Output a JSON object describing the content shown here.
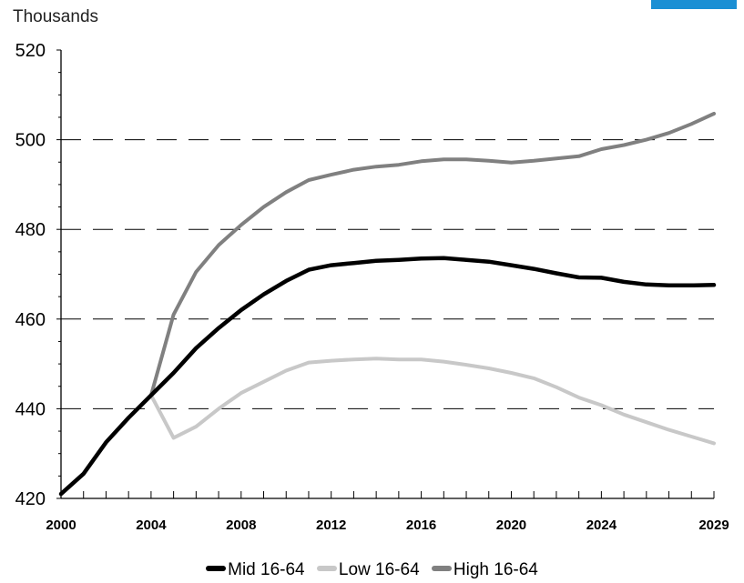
{
  "header": {
    "unit_label": "Thousands"
  },
  "colors": {
    "brand": "#1b8fd4",
    "mid": "#000000",
    "low": "#c8c8c8",
    "high": "#808080",
    "grid": "#000000"
  },
  "chart_data": {
    "type": "line",
    "ylabel": "Thousands",
    "ylim": [
      420,
      520
    ],
    "yticks": [
      420,
      440,
      460,
      480,
      500,
      520
    ],
    "xlim": [
      2000,
      2029
    ],
    "xticks": [
      2000,
      2004,
      2008,
      2012,
      2016,
      2020,
      2024,
      2029
    ],
    "grid": "horizontal dashed",
    "legend_position": "bottom",
    "series": [
      {
        "name": "Mid 16-64",
        "color": "#000000",
        "x": [
          2000,
          2001,
          2002,
          2003,
          2004,
          2005,
          2006,
          2007,
          2008,
          2009,
          2010,
          2011,
          2012,
          2013,
          2014,
          2015,
          2016,
          2017,
          2018,
          2019,
          2020,
          2021,
          2022,
          2023,
          2024,
          2025,
          2026,
          2027,
          2028,
          2029
        ],
        "y": [
          421,
          425.5,
          432.5,
          438,
          443,
          448,
          453.5,
          458,
          462,
          465.5,
          468.5,
          471,
          472,
          472.5,
          473,
          473.2,
          473.5,
          473.6,
          473.2,
          472.8,
          472,
          471.2,
          470.2,
          469.3,
          469.2,
          468.3,
          467.7,
          467.5,
          467.5,
          467.6
        ]
      },
      {
        "name": "Low 16-64",
        "color": "#c8c8c8",
        "x": [
          2004,
          2005,
          2006,
          2007,
          2008,
          2009,
          2010,
          2011,
          2012,
          2013,
          2014,
          2015,
          2016,
          2017,
          2018,
          2019,
          2020,
          2021,
          2022,
          2023,
          2024,
          2025,
          2026,
          2027,
          2028,
          2029
        ],
        "y": [
          443,
          433.5,
          436,
          440,
          443.5,
          446,
          448.5,
          450.3,
          450.7,
          451,
          451.2,
          451,
          451,
          450.5,
          449.8,
          449,
          448,
          446.8,
          444.8,
          442.5,
          440.8,
          438.7,
          437,
          435.3,
          433.8,
          432.3
        ]
      },
      {
        "name": "High 16-64",
        "color": "#808080",
        "x": [
          2004,
          2005,
          2006,
          2007,
          2008,
          2009,
          2010,
          2011,
          2012,
          2013,
          2014,
          2015,
          2016,
          2017,
          2018,
          2019,
          2020,
          2021,
          2022,
          2023,
          2024,
          2025,
          2026,
          2027,
          2028,
          2029
        ],
        "y": [
          443,
          461,
          470.5,
          476.5,
          481,
          485,
          488.3,
          491,
          492.2,
          493.3,
          494,
          494.4,
          495.2,
          495.6,
          495.6,
          495.3,
          494.9,
          495.3,
          495.8,
          496.3,
          497.9,
          498.8,
          500,
          501.5,
          503.5,
          505.8
        ]
      }
    ]
  }
}
